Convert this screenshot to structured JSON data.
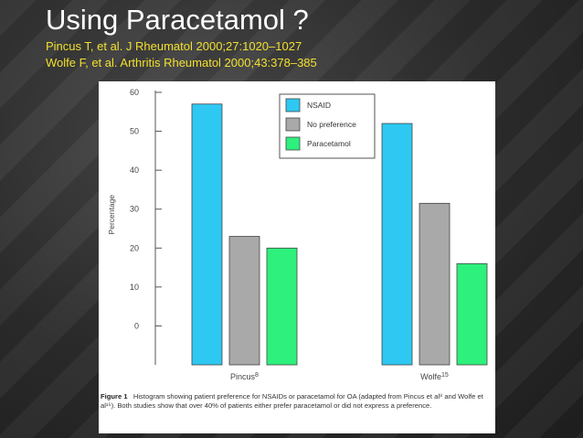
{
  "slide": {
    "title": "Using Paracetamol ?",
    "references": [
      "Pincus T, et al. J Rheumatol 2000;27:1020–1027",
      "Wolfe F, et al. Arthritis Rheumatol 2000;43:378–385"
    ]
  },
  "figure": {
    "caption_label": "Figure 1",
    "caption_text": "Histogram showing patient preference for NSAIDs or paracetamol for OA (adapted from Pincus et al⁸ and Wolfe et al¹⁵). Both studies show that over 40% of patients either prefer paracetamol or did not express a preference."
  },
  "chart_data": {
    "type": "bar",
    "categories": [
      "Pincus8",
      "Wolfe15"
    ],
    "category_labels": [
      {
        "name": "Pincus",
        "sup": "8"
      },
      {
        "name": "Wolfe",
        "sup": "15"
      }
    ],
    "series": [
      {
        "name": "NSAID",
        "color": "#2ec8f2",
        "values": [
          57,
          52
        ]
      },
      {
        "name": "No preference",
        "color": "#a9a9a9",
        "values": [
          23,
          31.5
        ]
      },
      {
        "name": "Paracetamol",
        "color": "#2ef07c",
        "values": [
          20,
          16
        ]
      }
    ],
    "ylabel": "Percentage",
    "ylim": [
      -10,
      60
    ],
    "yticks": [
      0,
      10,
      20,
      30,
      40,
      50,
      60
    ],
    "legend_position": "top-right",
    "grid": false
  }
}
